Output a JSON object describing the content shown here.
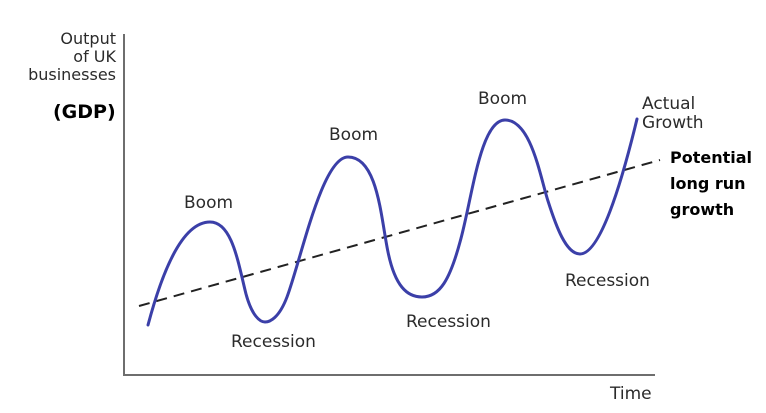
{
  "y_axis": {
    "label_lines": [
      "Output",
      "of UK",
      "businesses"
    ],
    "unit_label": "(GDP)"
  },
  "x_axis": {
    "label": "Time"
  },
  "curves": {
    "actual": {
      "label_lines": [
        "Actual",
        "Growth"
      ],
      "color": "#3b3fa8"
    },
    "potential": {
      "label_lines": [
        "Potential",
        "long run",
        "growth"
      ],
      "color": "#222222"
    }
  },
  "phases": {
    "boom_1": "Boom",
    "boom_2": "Boom",
    "boom_3": "Boom",
    "recession_1": "Recession",
    "recession_2": "Recession",
    "recession_3": "Recession"
  }
}
